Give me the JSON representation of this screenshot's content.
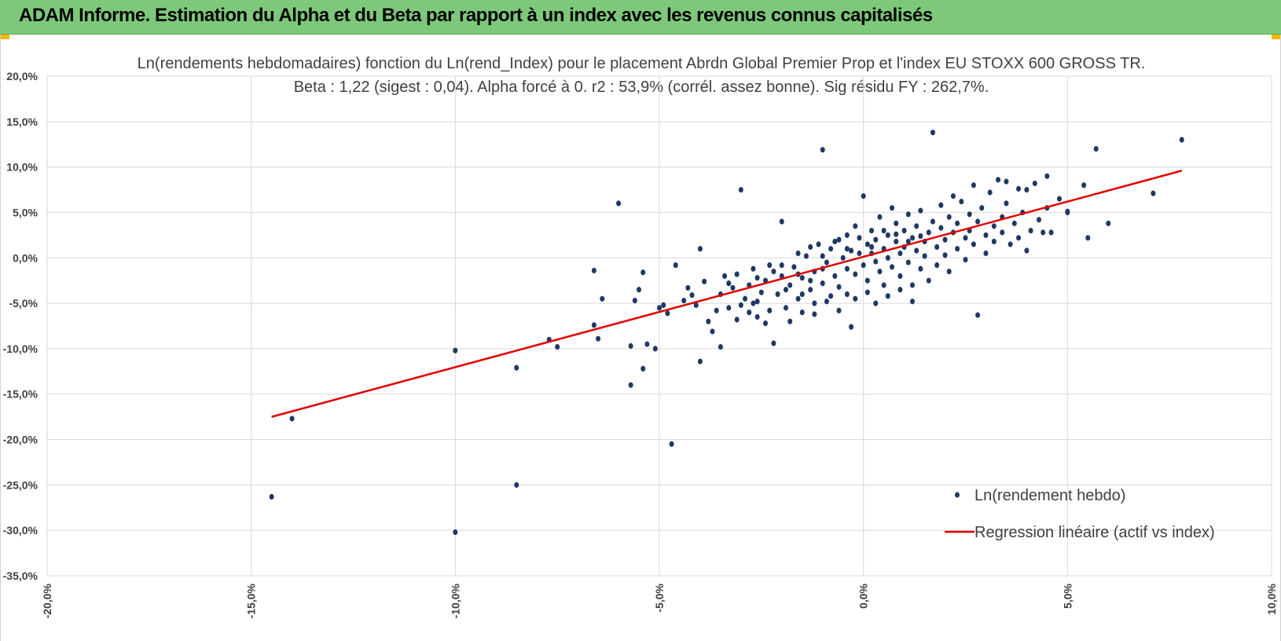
{
  "banner": {
    "title": "ADAM Informe. Estimation du Alpha et du Beta par rapport à un index avec les revenus connus capitalisés"
  },
  "colors": {
    "banner_bg": "#7dc87a",
    "corner_accent": "#f2b800",
    "points": "#1f3864",
    "regression": "#e00000",
    "grid": "#d9d9d9"
  },
  "chart_data": {
    "type": "scatter",
    "title": "Ln(rendements hebdomadaires) fonction du Ln(rend_Index) pour le placement Abrdn Global Premier Prop et l'index EU STOXX 600 GROSS TR.",
    "subtitle": "Beta : 1,22 (sigest : 0,04). Alpha forcé à 0. r2 : 53,9% (corrél. assez bonne). Sig résidu FY : 262,7%.",
    "xlim": [
      -0.2,
      0.1
    ],
    "ylim": [
      -0.35,
      0.2
    ],
    "x_ticks": [
      "-20,0%",
      "-15,0%",
      "-10,0%",
      "-5,0%",
      "0,0%",
      "5,0%",
      "10,0%"
    ],
    "y_ticks": [
      "20,0%",
      "15,0%",
      "10,0%",
      "5,0%",
      "0,0%",
      "-5,0%",
      "-10,0%",
      "-15,0%",
      "-20,0%",
      "-25,0%",
      "-30,0%",
      "-35,0%"
    ],
    "grid": true,
    "legend_position": "bottom-right",
    "series": [
      {
        "name": "Ln(rendement hebdo)",
        "kind": "scatter",
        "points": [
          [
            -0.145,
            -0.263
          ],
          [
            -0.14,
            -0.177
          ],
          [
            -0.1,
            -0.102
          ],
          [
            -0.1,
            -0.302
          ],
          [
            -0.085,
            -0.121
          ],
          [
            -0.085,
            -0.25
          ],
          [
            -0.077,
            -0.09
          ],
          [
            -0.075,
            -0.098
          ],
          [
            -0.066,
            -0.014
          ],
          [
            -0.066,
            -0.074
          ],
          [
            -0.065,
            -0.089
          ],
          [
            -0.064,
            -0.045
          ],
          [
            -0.06,
            0.06
          ],
          [
            -0.057,
            -0.14
          ],
          [
            -0.057,
            -0.097
          ],
          [
            -0.056,
            -0.047
          ],
          [
            -0.055,
            -0.035
          ],
          [
            -0.054,
            -0.122
          ],
          [
            -0.054,
            -0.016
          ],
          [
            -0.053,
            -0.095
          ],
          [
            -0.051,
            -0.1
          ],
          [
            -0.05,
            -0.055
          ],
          [
            -0.049,
            -0.052
          ],
          [
            -0.048,
            -0.061
          ],
          [
            -0.047,
            -0.205
          ],
          [
            -0.046,
            -0.008
          ],
          [
            -0.044,
            -0.047
          ],
          [
            -0.043,
            -0.033
          ],
          [
            -0.042,
            -0.041
          ],
          [
            -0.041,
            -0.052
          ],
          [
            -0.04,
            0.01
          ],
          [
            -0.04,
            -0.114
          ],
          [
            -0.039,
            -0.026
          ],
          [
            -0.038,
            -0.07
          ],
          [
            -0.037,
            -0.081
          ],
          [
            -0.036,
            -0.058
          ],
          [
            -0.035,
            -0.04
          ],
          [
            -0.035,
            -0.098
          ],
          [
            -0.034,
            -0.02
          ],
          [
            -0.033,
            -0.055
          ],
          [
            -0.032,
            -0.033
          ],
          [
            -0.031,
            -0.068
          ],
          [
            -0.03,
            0.075
          ],
          [
            -0.029,
            -0.045
          ],
          [
            -0.028,
            -0.03
          ],
          [
            -0.027,
            -0.05
          ],
          [
            -0.027,
            -0.012
          ],
          [
            -0.026,
            -0.065
          ],
          [
            -0.025,
            -0.038
          ],
          [
            -0.024,
            -0.025
          ],
          [
            -0.023,
            -0.058
          ],
          [
            -0.023,
            -0.008
          ],
          [
            -0.022,
            -0.094
          ],
          [
            -0.021,
            -0.04
          ],
          [
            -0.02,
            -0.02
          ],
          [
            -0.02,
            0.04
          ],
          [
            -0.019,
            -0.055
          ],
          [
            -0.018,
            -0.03
          ],
          [
            -0.017,
            -0.01
          ],
          [
            -0.016,
            -0.045
          ],
          [
            -0.015,
            -0.06
          ],
          [
            -0.015,
            -0.022
          ],
          [
            -0.014,
            0.002
          ],
          [
            -0.013,
            -0.035
          ],
          [
            -0.012,
            -0.015
          ],
          [
            -0.012,
            -0.05
          ],
          [
            -0.011,
            0.015
          ],
          [
            -0.01,
            -0.028
          ],
          [
            -0.01,
            0.119
          ],
          [
            -0.009,
            -0.005
          ],
          [
            -0.008,
            -0.042
          ],
          [
            -0.008,
            0.01
          ],
          [
            -0.007,
            -0.02
          ],
          [
            -0.006,
            0.02
          ],
          [
            -0.006,
            -0.032
          ],
          [
            -0.005,
            0.0
          ],
          [
            -0.004,
            -0.012
          ],
          [
            -0.004,
            0.025
          ],
          [
            -0.003,
            -0.076
          ],
          [
            -0.003,
            0.008
          ],
          [
            -0.002,
            -0.018
          ],
          [
            -0.002,
            0.035
          ],
          [
            -0.001,
            0.005
          ],
          [
            0.0,
            -0.008
          ],
          [
            0.0,
            0.068
          ],
          [
            0.001,
            0.015
          ],
          [
            0.001,
            -0.025
          ],
          [
            0.002,
            0.005
          ],
          [
            0.002,
            0.03
          ],
          [
            0.003,
            -0.004
          ],
          [
            0.003,
            0.02
          ],
          [
            0.004,
            -0.015
          ],
          [
            0.004,
            0.045
          ],
          [
            0.005,
            0.01
          ],
          [
            0.005,
            -0.03
          ],
          [
            0.006,
            0.025
          ],
          [
            0.006,
            0.0
          ],
          [
            0.007,
            0.055
          ],
          [
            0.007,
            -0.01
          ],
          [
            0.008,
            0.018
          ],
          [
            0.008,
            0.038
          ],
          [
            0.009,
            0.005
          ],
          [
            0.009,
            -0.02
          ],
          [
            0.01,
            0.03
          ],
          [
            0.01,
            0.012
          ],
          [
            0.011,
            -0.005
          ],
          [
            0.011,
            0.048
          ],
          [
            0.012,
            0.022
          ],
          [
            0.012,
            -0.048
          ],
          [
            0.013,
            0.008
          ],
          [
            0.013,
            0.035
          ],
          [
            0.014,
            -0.012
          ],
          [
            0.014,
            0.052
          ],
          [
            0.015,
            0.018
          ],
          [
            0.015,
            0.002
          ],
          [
            0.016,
            0.028
          ],
          [
            0.016,
            -0.025
          ],
          [
            0.017,
            0.138
          ],
          [
            0.017,
            0.04
          ],
          [
            0.018,
            0.012
          ],
          [
            0.018,
            -0.008
          ],
          [
            0.019,
            0.033
          ],
          [
            0.019,
            0.058
          ],
          [
            0.02,
            0.02
          ],
          [
            0.02,
            0.003
          ],
          [
            0.021,
            0.045
          ],
          [
            0.021,
            -0.015
          ],
          [
            0.022,
            0.028
          ],
          [
            0.022,
            0.068
          ],
          [
            0.023,
            0.01
          ],
          [
            0.023,
            0.038
          ],
          [
            0.024,
            0.062
          ],
          [
            0.025,
            0.022
          ],
          [
            0.025,
            -0.002
          ],
          [
            0.026,
            0.048
          ],
          [
            0.026,
            0.03
          ],
          [
            0.027,
            0.08
          ],
          [
            0.027,
            0.015
          ],
          [
            0.028,
            -0.063
          ],
          [
            0.028,
            0.04
          ],
          [
            0.029,
            0.055
          ],
          [
            0.03,
            0.025
          ],
          [
            0.03,
            0.005
          ],
          [
            0.031,
            0.072
          ],
          [
            0.032,
            0.035
          ],
          [
            0.032,
            0.018
          ],
          [
            0.033,
            0.086
          ],
          [
            0.034,
            0.045
          ],
          [
            0.034,
            0.028
          ],
          [
            0.035,
            0.084
          ],
          [
            0.035,
            0.06
          ],
          [
            0.036,
            0.015
          ],
          [
            0.037,
            0.038
          ],
          [
            0.038,
            0.076
          ],
          [
            0.038,
            0.022
          ],
          [
            0.039,
            0.05
          ],
          [
            0.04,
            0.075
          ],
          [
            0.04,
            0.008
          ],
          [
            0.041,
            0.03
          ],
          [
            0.042,
            0.082
          ],
          [
            0.043,
            0.042
          ],
          [
            0.044,
            0.028
          ],
          [
            0.045,
            0.09
          ],
          [
            0.045,
            0.055
          ],
          [
            0.046,
            0.028
          ],
          [
            0.048,
            0.065
          ],
          [
            0.05,
            0.05
          ],
          [
            0.05,
            0.051
          ],
          [
            0.054,
            0.08
          ],
          [
            0.055,
            0.022
          ],
          [
            0.057,
            0.12
          ],
          [
            0.06,
            0.038
          ],
          [
            0.071,
            0.071
          ],
          [
            0.078,
            0.13
          ],
          [
            -0.018,
            -0.07
          ],
          [
            -0.015,
            -0.04
          ],
          [
            -0.012,
            -0.062
          ],
          [
            -0.009,
            -0.048
          ],
          [
            -0.006,
            -0.058
          ],
          [
            -0.004,
            -0.04
          ],
          [
            -0.002,
            -0.045
          ],
          [
            0.001,
            -0.038
          ],
          [
            0.003,
            -0.05
          ],
          [
            0.006,
            -0.042
          ],
          [
            0.009,
            -0.035
          ],
          [
            0.012,
            -0.03
          ],
          [
            -0.02,
            -0.008
          ],
          [
            -0.016,
            0.005
          ],
          [
            -0.013,
            0.012
          ],
          [
            -0.01,
            0.002
          ],
          [
            -0.007,
            0.018
          ],
          [
            -0.004,
            0.01
          ],
          [
            -0.001,
            0.022
          ],
          [
            0.002,
            0.012
          ],
          [
            0.005,
            0.03
          ],
          [
            0.008,
            0.026
          ],
          [
            0.011,
            0.018
          ],
          [
            0.014,
            0.024
          ],
          [
            -0.026,
            -0.022
          ],
          [
            -0.022,
            -0.015
          ],
          [
            -0.019,
            -0.035
          ],
          [
            -0.016,
            -0.018
          ],
          [
            -0.013,
            -0.025
          ],
          [
            -0.01,
            -0.012
          ],
          [
            -0.03,
            -0.052
          ],
          [
            -0.028,
            -0.06
          ],
          [
            -0.026,
            -0.048
          ],
          [
            -0.024,
            -0.072
          ],
          [
            -0.031,
            -0.018
          ],
          [
            -0.033,
            -0.028
          ]
        ]
      },
      {
        "name": "Regression linéaire (actif vs index)",
        "kind": "line",
        "points": [
          [
            -0.145,
            -0.175
          ],
          [
            0.078,
            0.096
          ]
        ]
      }
    ]
  }
}
